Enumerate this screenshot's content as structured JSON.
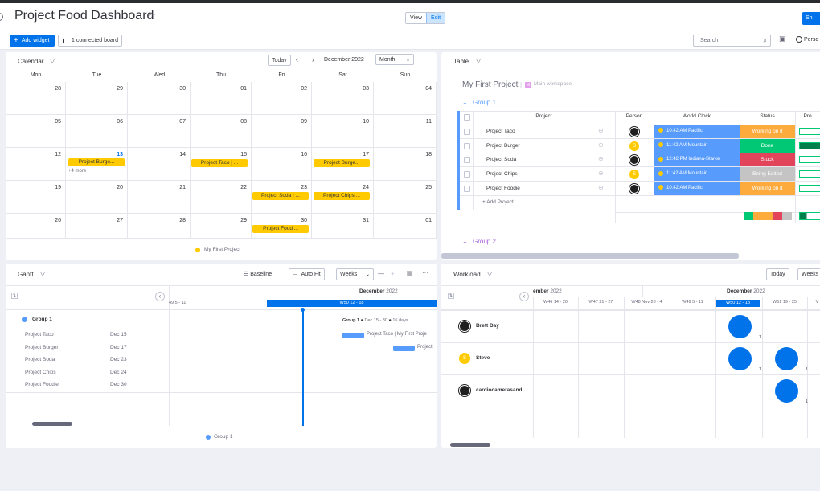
{
  "header": {
    "title": "Project Food Dashboard",
    "view_label": "View",
    "edit_label": "Edit",
    "share_label": "Sh",
    "add_widget_label": "Add widget",
    "connected_label": "1 connected board",
    "search_placeholder": "Search",
    "person_label": "Perso"
  },
  "calendar": {
    "title": "Calendar",
    "today_label": "Today",
    "month_title": "December 2022",
    "view_mode": "Month",
    "weekdays": [
      "Mon",
      "Tue",
      "Wed",
      "Thu",
      "Fri",
      "Sat",
      "Sun"
    ],
    "days": [
      [
        "28",
        "29",
        "30",
        "01",
        "02",
        "03",
        "04"
      ],
      [
        "05",
        "06",
        "07",
        "08",
        "09",
        "10",
        "11"
      ],
      [
        "12",
        "13",
        "14",
        "15",
        "16",
        "17",
        "18"
      ],
      [
        "19",
        "20",
        "21",
        "22",
        "23",
        "24",
        "25"
      ],
      [
        "26",
        "27",
        "28",
        "29",
        "30",
        "31",
        "01"
      ]
    ],
    "events": {
      "e1": "Project Burge...",
      "e2": "Project Taco | ...",
      "e3": "Project Burge...",
      "e4": "Project Soda | ...",
      "e5": "Project Chips ...",
      "e6": "Project Foodi..."
    },
    "more_label": "+4 more",
    "legend": "My First Project",
    "accent": "#0073ea",
    "event_color": "#ffcb00"
  },
  "table": {
    "title": "Table",
    "board_name": "My First Project",
    "workspace": "Main workspace",
    "group1_label": "Group 1",
    "group2_label": "Group 2",
    "columns": {
      "project": "Project",
      "person": "Person",
      "clock": "World Clock",
      "status": "Status",
      "pro": "Pro"
    },
    "rows": [
      {
        "project": "Project Taco",
        "clock": "10:42 AM Pacific",
        "status": "Working on it",
        "status_color": "#fdab3d",
        "avatar": "dark"
      },
      {
        "project": "Project Burger",
        "clock": "11:42 AM Mountain",
        "status": "Done",
        "status_color": "#00c875",
        "avatar": "S"
      },
      {
        "project": "Project Soda",
        "clock": "12:42 PM Indiana-Starke",
        "status": "Stuck",
        "status_color": "#e2445c",
        "avatar": "dark"
      },
      {
        "project": "Project Chips",
        "clock": "11:42 AM Mountain",
        "status": "Being Edited",
        "status_color": "#c4c4c4",
        "avatar": "S"
      },
      {
        "project": "Project Foodie",
        "clock": "10:42 AM Pacific",
        "status": "Working on it",
        "status_color": "#fdab3d",
        "avatar": "dark"
      }
    ],
    "add_project_label": "+ Add Project",
    "group1_color": "#579bfc",
    "group2_color": "#a25ddc"
  },
  "gantt": {
    "title": "Gantt",
    "baseline_label": "Baseline",
    "autofit_label": "Auto Fit",
    "weeks_label": "Weeks",
    "month_label": "December",
    "year_label": "2022",
    "w49_label": "49  5 - 11",
    "w50_label": "W50  12 - 18",
    "group_label": "Group 1",
    "group_bar_label": "Group 1",
    "group_dates": "Dec 15 - 30",
    "group_days": "16 days",
    "rows": [
      {
        "name": "Project Taco",
        "date": "Dec 15"
      },
      {
        "name": "Project Burger",
        "date": "Dec 17"
      },
      {
        "name": "Project Soda",
        "date": "Dec 23"
      },
      {
        "name": "Project Chips",
        "date": "Dec 24"
      },
      {
        "name": "Project Foodie",
        "date": "Dec 30"
      }
    ],
    "bar1_label": "Project Taco | My First Proje",
    "bar2_label": "Project",
    "legend": "Group 1"
  },
  "workload": {
    "title": "Workload",
    "today_label": "Today",
    "weeks_label": "Weeks",
    "nov_label": "ember",
    "nov_year": "2022",
    "dec_label": "December",
    "dec_year": "2022",
    "weeks": [
      "W46  14 - 20",
      "W47  21 - 27",
      "W48  Nov 28 - 4",
      "W49  5 - 11",
      "W50  12 - 18",
      "W51  19 - 25",
      "V"
    ],
    "people": [
      {
        "name": "Brett Day"
      },
      {
        "name": "Steve",
        "initial": "S"
      },
      {
        "name": "cardiocamerasand..."
      }
    ],
    "count": "1"
  }
}
